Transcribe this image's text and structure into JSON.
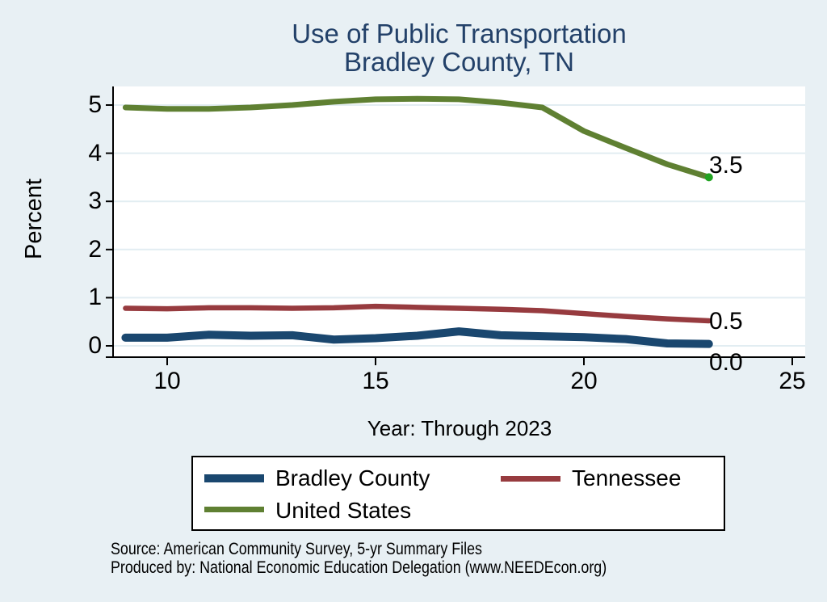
{
  "page": {
    "background": "#e8f0f4"
  },
  "footer": {
    "line1": "Source: American Community Survey, 5-yr Summary Files",
    "line2": "Produced by: National Economic Education Delegation (www.NEEDEcon.org)"
  },
  "chart_data": {
    "type": "line",
    "title": "Use of Public Transportation",
    "subtitle": "Bradley County, TN",
    "xlabel": "Year: Through 2023",
    "ylabel": "Percent",
    "x": [
      9,
      10,
      11,
      12,
      13,
      14,
      15,
      16,
      17,
      18,
      19,
      20,
      21,
      22,
      23
    ],
    "x_ticks": [
      10,
      15,
      20,
      25
    ],
    "x_tick_labels": [
      "10",
      "15",
      "20",
      "25"
    ],
    "y_ticks": [
      0,
      1,
      2,
      3,
      4,
      5
    ],
    "y_tick_labels": [
      "0",
      "1",
      "2",
      "3",
      "4",
      "5"
    ],
    "xlim": [
      8.7,
      25.3
    ],
    "ylim": [
      0,
      5.4
    ],
    "grid": true,
    "grid_color": "#e2edf2",
    "plot_background": "#ffffff",
    "axis_color": "#000000",
    "legend_position": "bottom",
    "series": [
      {
        "name": "Bradley County",
        "color": "#1a476f",
        "end_label": "0.0",
        "values": [
          0.17,
          0.17,
          0.23,
          0.21,
          0.22,
          0.13,
          0.16,
          0.21,
          0.3,
          0.22,
          0.2,
          0.18,
          0.14,
          0.05,
          0.04
        ]
      },
      {
        "name": "Tennessee",
        "color": "#973b3f",
        "end_label": "0.5",
        "values": [
          0.78,
          0.77,
          0.79,
          0.79,
          0.78,
          0.79,
          0.82,
          0.8,
          0.78,
          0.76,
          0.73,
          0.67,
          0.61,
          0.56,
          0.52
        ]
      },
      {
        "name": "United States",
        "color": "#5f8032",
        "end_label": "3.5",
        "end_dot_color": "#22a322",
        "values": [
          4.95,
          4.92,
          4.92,
          4.95,
          5.0,
          5.07,
          5.12,
          5.13,
          5.12,
          5.05,
          4.95,
          4.46,
          4.11,
          3.77,
          3.5
        ]
      }
    ]
  }
}
